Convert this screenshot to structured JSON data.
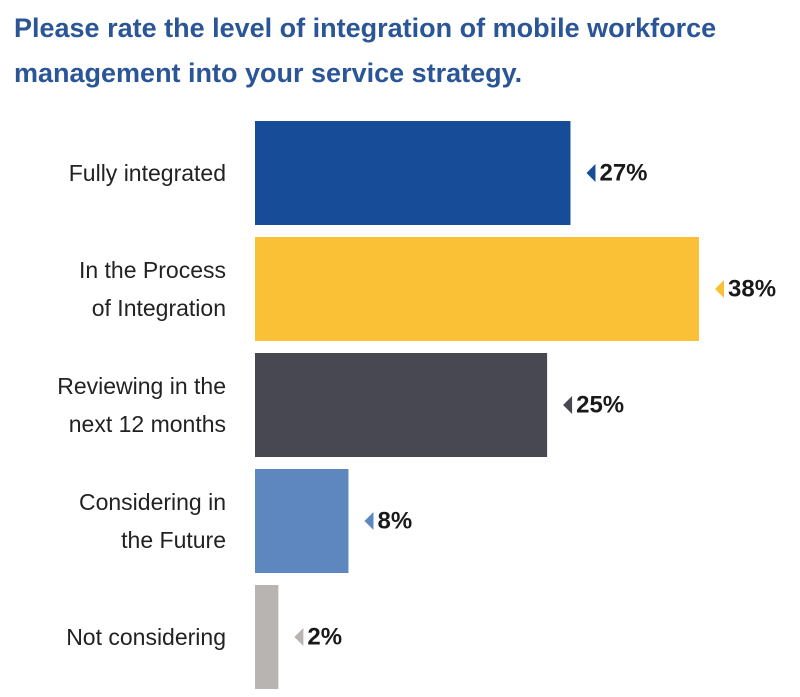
{
  "title_lines": [
    "Please rate the level of integration of mobile workforce",
    "management  into your service strategy."
  ],
  "chart_data": {
    "type": "bar",
    "orientation": "horizontal",
    "title": "Please rate the level of integration of mobile workforce management  into your service strategy.",
    "categories": [
      [
        "Fully integrated"
      ],
      [
        "In the Process",
        "of Integration"
      ],
      [
        "Reviewing in the",
        "next 12 months"
      ],
      [
        "Considering in",
        "the Future"
      ],
      [
        "Not considering"
      ]
    ],
    "values": [
      27,
      38,
      25,
      8,
      2
    ],
    "value_labels": [
      "27%",
      "38%",
      "25%",
      "8%",
      "2%"
    ],
    "colors": [
      "#174c98",
      "#fbc136",
      "#474851",
      "#5e87bf",
      "#b7b4b1"
    ],
    "xlim": [
      0,
      38
    ],
    "grid": false,
    "legend": "none"
  }
}
